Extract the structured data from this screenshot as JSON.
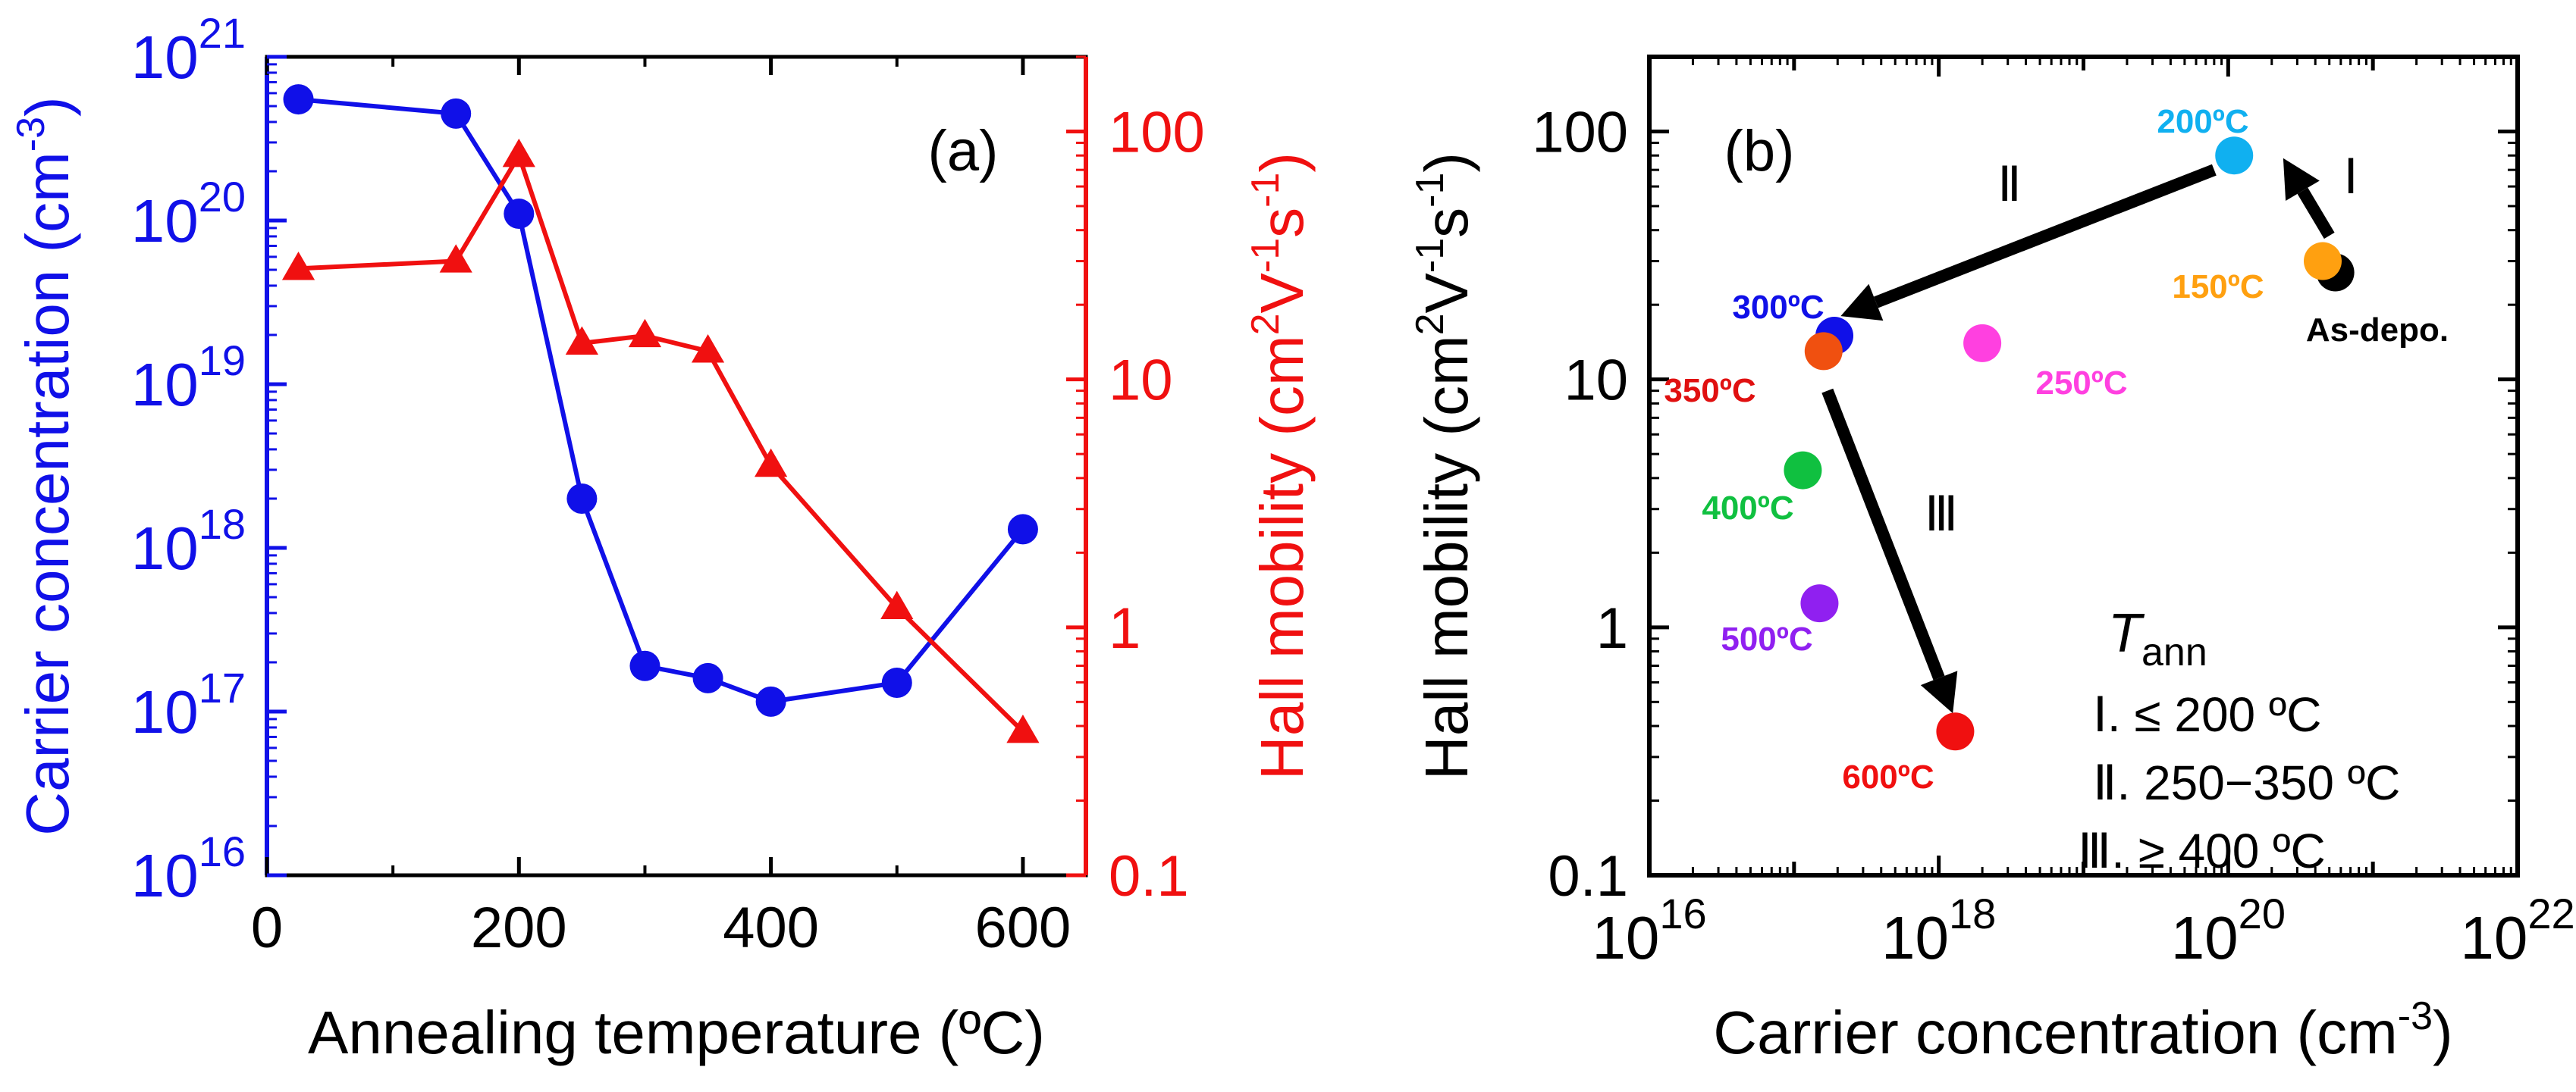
{
  "colors": {
    "blue": "#1010e8",
    "red": "#f01010",
    "black": "#000000"
  },
  "chart_data": [
    {
      "type": "line",
      "panel_label": "(a)",
      "xlabel": "Annealing temperature (ºC)",
      "xlim": [
        0,
        650
      ],
      "xticks": [
        0,
        200,
        400,
        600
      ],
      "x_tick_labels": [
        "0",
        "200",
        "400",
        "600"
      ],
      "y_left": {
        "label_main": "Carrier concentration (cm",
        "label_exp": "-3",
        "label_close": ")",
        "scale": "log",
        "ylim": [
          1e+16,
          1e+21
        ],
        "tick_bases": [
          "10",
          "10",
          "10",
          "10",
          "10",
          "10"
        ],
        "tick_exps": [
          "16",
          "17",
          "18",
          "19",
          "20",
          "21"
        ]
      },
      "y_right": {
        "label_main": "Hall mobility (cm",
        "label_sup1": "2",
        "label_mid1": "V",
        "label_sup2": "-1",
        "label_mid2": "s",
        "label_sup3": "-1",
        "label_close": ")",
        "scale": "log",
        "ylim": [
          0.1,
          200
        ],
        "tick_values": [
          0.1,
          1,
          10,
          100
        ],
        "tick_labels": [
          "0.1",
          "1",
          "10",
          "100"
        ]
      },
      "series": [
        {
          "name": "Carrier concentration",
          "axis": "left",
          "marker": "circle",
          "color": "#1010e8",
          "x": [
            25,
            150,
            200,
            250,
            300,
            350,
            400,
            500,
            600
          ],
          "y": [
            5.5e+20,
            4.5e+20,
            1.1e+20,
            2e+18,
            1.9e+17,
            1.6e+17,
            1.15e+17,
            1.5e+17,
            1.3e+18
          ]
        },
        {
          "name": "Hall mobility",
          "axis": "right",
          "marker": "triangle",
          "color": "#f01010",
          "x": [
            25,
            150,
            200,
            250,
            300,
            350,
            400,
            500,
            600
          ],
          "y": [
            28,
            30,
            80,
            14,
            15,
            13,
            4.5,
            1.2,
            0.38
          ]
        }
      ]
    },
    {
      "type": "scatter",
      "panel_label": "(b)",
      "xlabel_main": "Carrier concentration (cm",
      "xlabel_exp": "-3",
      "xlabel_close": ")",
      "ylabel_main": "Hall mobility (cm",
      "ylabel_sup1": "2",
      "ylabel_mid1": "V",
      "ylabel_sup2": "-1",
      "ylabel_mid2": "s",
      "ylabel_sup3": "-1",
      "ylabel_close": ")",
      "xscale": "log",
      "yscale": "log",
      "xlim": [
        1e+16,
        1e+22
      ],
      "ylim": [
        0.1,
        200
      ],
      "x_tick_bases": [
        "10",
        "10",
        "10",
        "10"
      ],
      "x_tick_exps": [
        "16",
        "18",
        "20",
        "22"
      ],
      "y_tick_values": [
        0.1,
        1,
        10,
        100
      ],
      "y_tick_labels": [
        "0.1",
        "1",
        "10",
        "100"
      ],
      "points": [
        {
          "label": "As-depo.",
          "x": 5.5e+20,
          "y": 27,
          "color": "#000000"
        },
        {
          "label": "150ºC",
          "x": 4.5e+20,
          "y": 30,
          "color": "#ffa010"
        },
        {
          "label": "200ºC",
          "x": 1.1e+20,
          "y": 80,
          "color": "#10b0f0"
        },
        {
          "label": "250ºC",
          "x": 2e+18,
          "y": 14,
          "color": "#ff40e0"
        },
        {
          "label": "300ºC",
          "x": 1.9e+17,
          "y": 15,
          "color": "#1010e8"
        },
        {
          "label": "350ºC",
          "x": 1.6e+17,
          "y": 13,
          "color": "#f05010"
        },
        {
          "label": "400ºC",
          "x": 1.15e+17,
          "y": 4.3,
          "color": "#10c040"
        },
        {
          "label": "500ºC",
          "x": 1.5e+17,
          "y": 1.25,
          "color": "#9020f0"
        },
        {
          "label": "600ºC",
          "x": 1.3e+18,
          "y": 0.38,
          "color": "#f01010"
        }
      ],
      "arrows": [
        {
          "label": "Ⅰ",
          "from": [
            5e+20,
            38
          ],
          "to": [
            2.4e+20,
            78
          ]
        },
        {
          "label": "Ⅱ",
          "from": [
            8e+19,
            70
          ],
          "to": [
            2.1e+17,
            18
          ]
        },
        {
          "label": "Ⅲ",
          "from": [
            1.7e+17,
            9
          ],
          "to": [
            1.25e+18,
            0.45
          ]
        }
      ],
      "legend": {
        "title": "T",
        "title_sub": "ann",
        "items": [
          {
            "numeral": "Ⅰ",
            "text": ". ≤ 200 ºC"
          },
          {
            "numeral": "Ⅱ",
            "text": ". 250−350 ºC"
          },
          {
            "numeral": "Ⅲ",
            "text": ". ≥ 400 ºC"
          }
        ]
      }
    }
  ]
}
